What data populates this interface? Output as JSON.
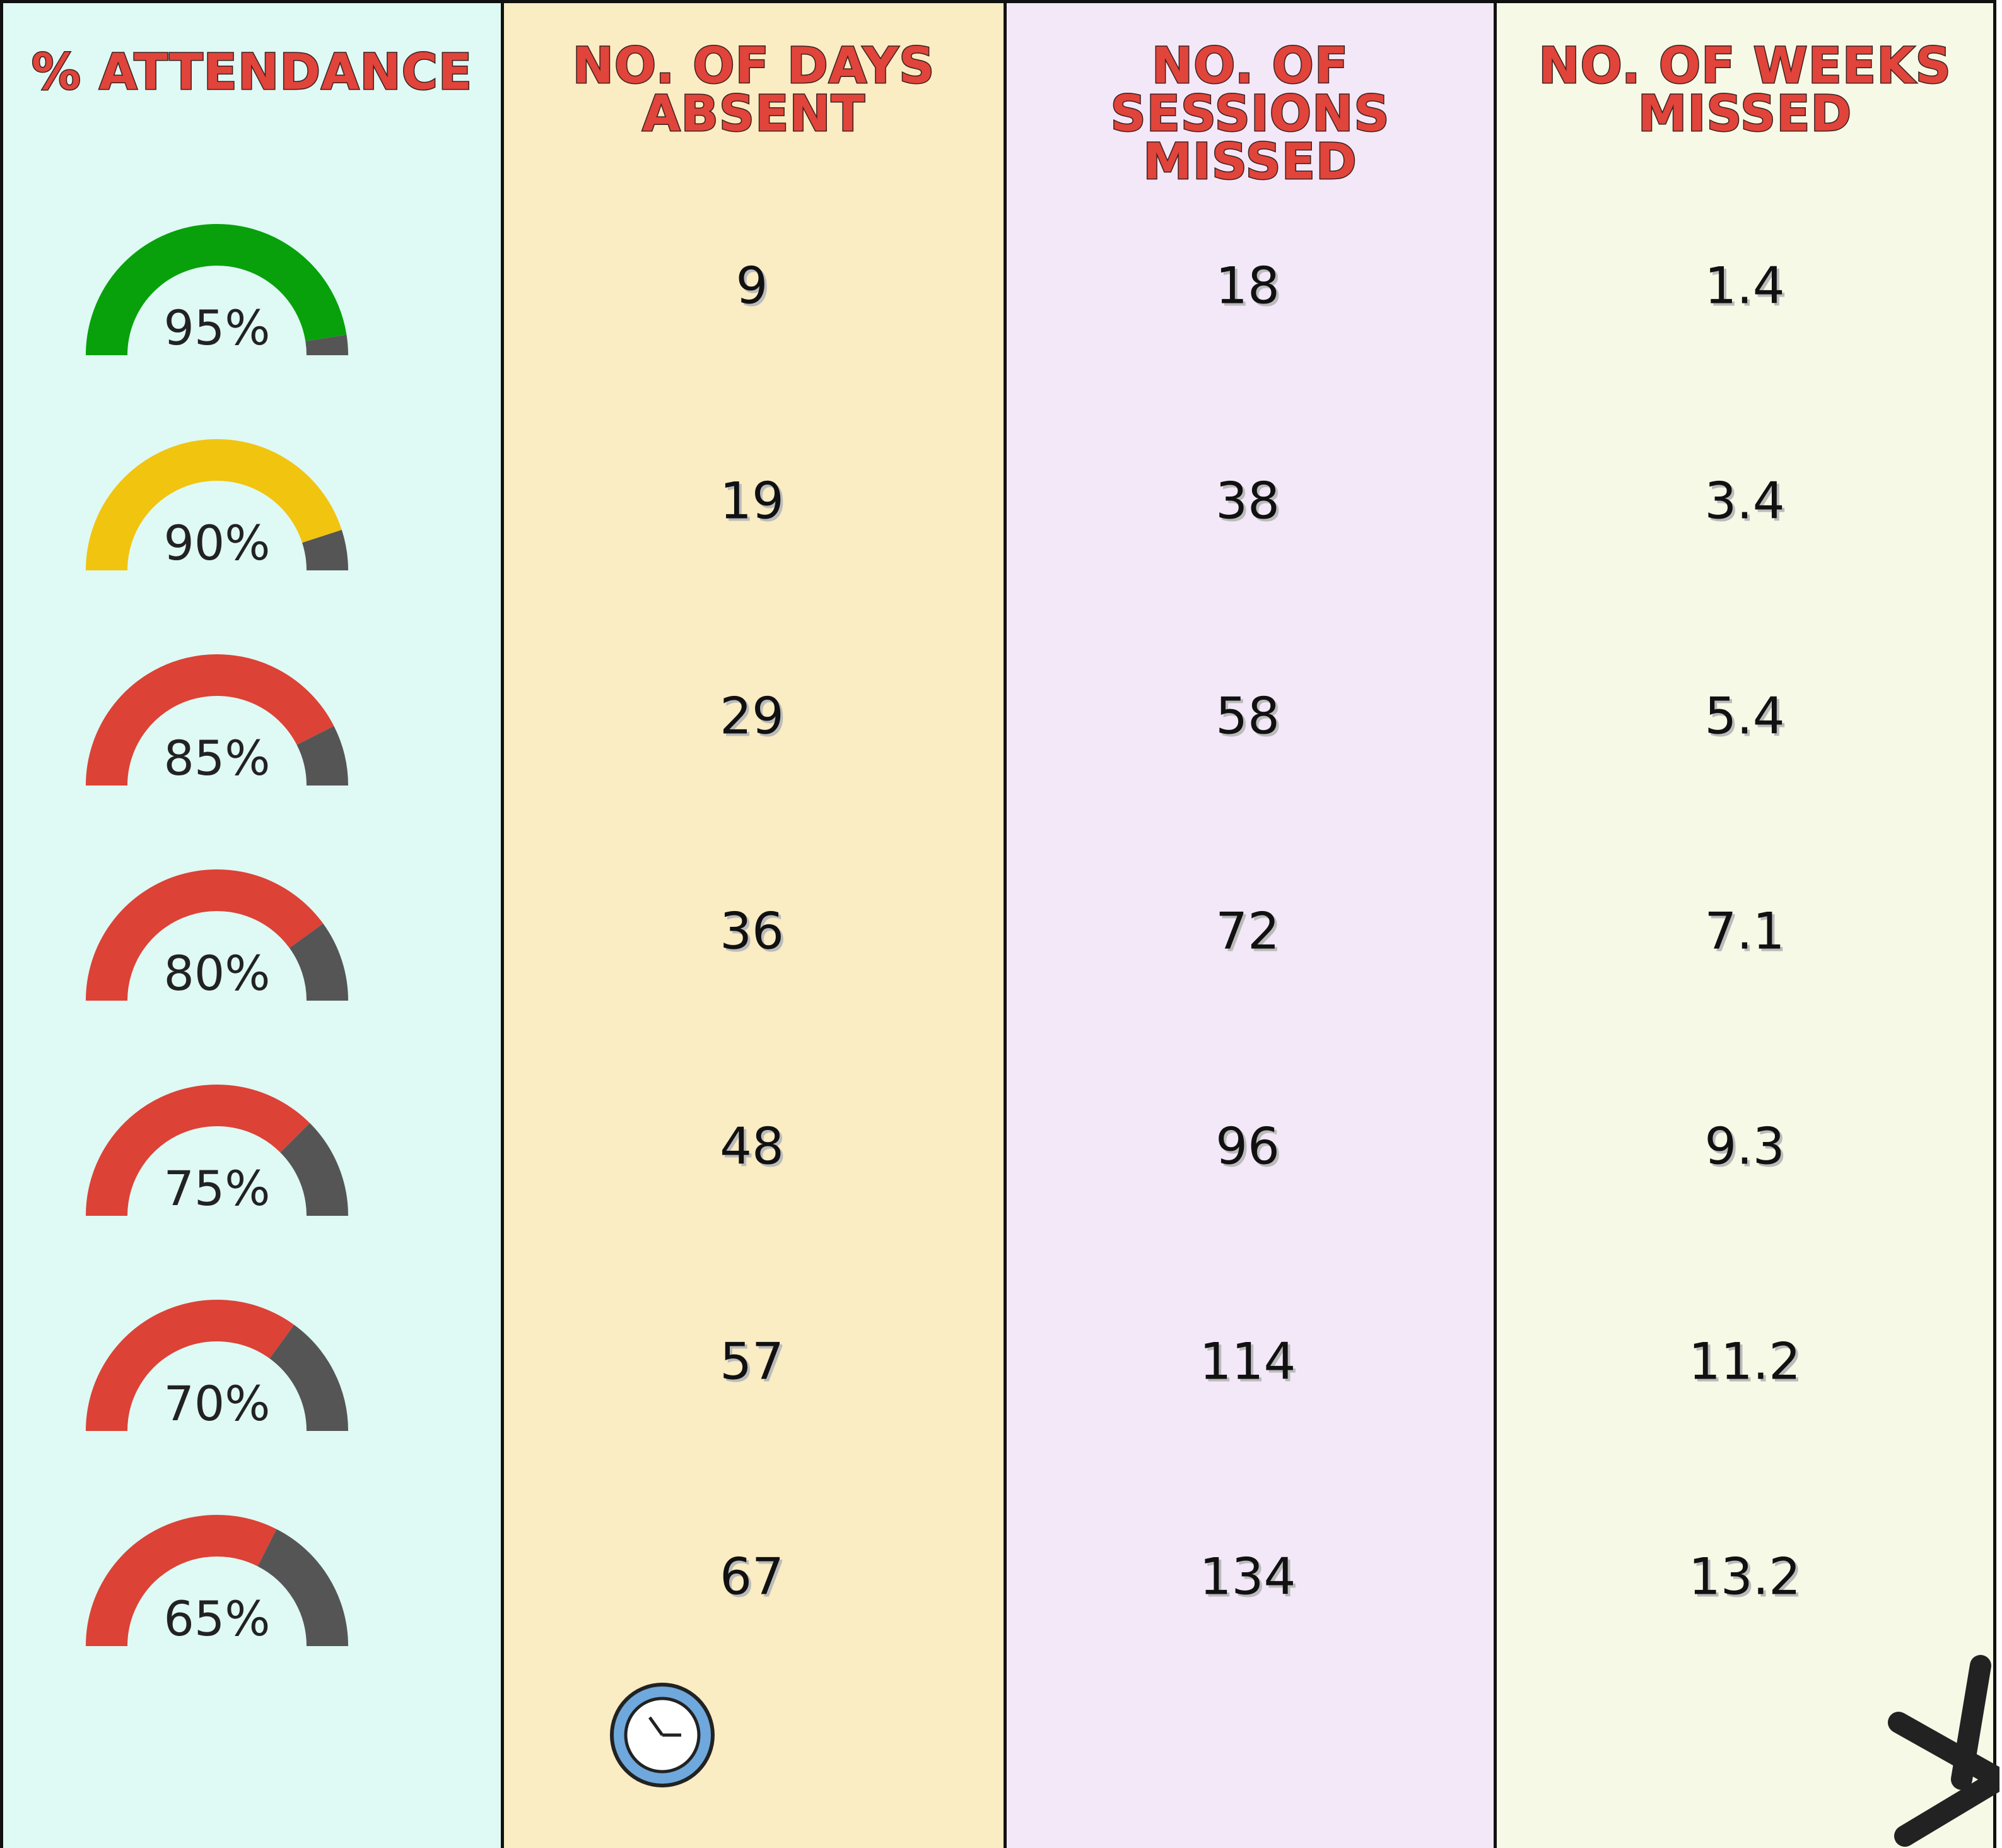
{
  "table": {
    "headers": [
      "% ATTENDANCE",
      "NO. OF DAYS ABSENT",
      "NO. OF SESSIONS MISSED",
      "NO. OF WEEKS MISSED"
    ],
    "gauge_remainder_color": "#555555",
    "rows": [
      {
        "attendance": {
          "value": 95,
          "label": "95%"
        },
        "color": "#08a10b",
        "days_absent": 9,
        "sessions_missed": 18,
        "weeks_missed": 1.4
      },
      {
        "attendance": {
          "value": 90,
          "label": "90%"
        },
        "color": "#f1c40f",
        "days_absent": 19,
        "sessions_missed": 38,
        "weeks_missed": 3.4
      },
      {
        "attendance": {
          "value": 85,
          "label": "85%"
        },
        "color": "#dc4236",
        "days_absent": 29,
        "sessions_missed": 58,
        "weeks_missed": 5.4
      },
      {
        "attendance": {
          "value": 80,
          "label": "80%"
        },
        "color": "#dc4236",
        "days_absent": 36,
        "sessions_missed": 72,
        "weeks_missed": 7.1
      },
      {
        "attendance": {
          "value": 75,
          "label": "75%"
        },
        "color": "#dc4236",
        "days_absent": 48,
        "sessions_missed": 96,
        "weeks_missed": 9.3
      },
      {
        "attendance": {
          "value": 70,
          "label": "70%"
        },
        "color": "#dc4236",
        "days_absent": 57,
        "sessions_missed": 114,
        "weeks_missed": 11.2
      },
      {
        "attendance": {
          "value": 65,
          "label": "65%"
        },
        "color": "#dc4236",
        "days_absent": 67,
        "sessions_missed": 134,
        "weeks_missed": 13.2
      }
    ]
  }
}
